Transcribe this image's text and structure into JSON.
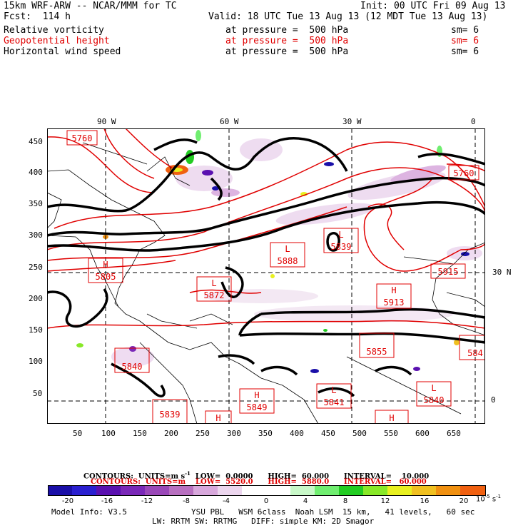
{
  "header": {
    "model_line": "15km WRF-ARW -- NCAR/MMM for TC",
    "init_line": "Init: 00 UTC Fri 09 Aug 13",
    "fcst_line": "Fcst:  114 h",
    "valid_line": "Valid: 18 UTC Tue 13 Aug 13 (12 MDT Tue 13 Aug 13)",
    "fields": [
      {
        "name": "Relative vorticity",
        "level": "at pressure =  500 hPa",
        "sm": "sm= 6",
        "color": "#000000"
      },
      {
        "name": "Geopotential height",
        "level": "at pressure =  500 hPa",
        "sm": "sm= 6",
        "color": "#e00000"
      },
      {
        "name": "Horizontal wind speed",
        "level": "at pressure =  500 hPa",
        "sm": "sm= 6",
        "color": "#000000"
      }
    ]
  },
  "map": {
    "lon_labels": [
      "90 W",
      "60 W",
      "30 W",
      "0"
    ],
    "lat_labels": [
      "30 N",
      "0"
    ],
    "y_ticks": [
      "450",
      "400",
      "350",
      "300",
      "250",
      "200",
      "150",
      "100",
      "50"
    ],
    "x_ticks": [
      "50",
      "100",
      "150",
      "200",
      "250",
      "300",
      "350",
      "400",
      "450",
      "500",
      "550",
      "600",
      "650"
    ],
    "height_labels": [
      {
        "kind": "",
        "value": "5760"
      },
      {
        "kind": "",
        "value": "5760"
      },
      {
        "kind": "L",
        "value": "5839"
      },
      {
        "kind": "L",
        "value": "5888"
      },
      {
        "kind": "H",
        "value": "5805"
      },
      {
        "kind": "L",
        "value": "5872"
      },
      {
        "kind": "H",
        "value": "5913"
      },
      {
        "kind": "",
        "value": "5915"
      },
      {
        "kind": "",
        "value": "5855"
      },
      {
        "kind": "",
        "value": "584"
      },
      {
        "kind": "",
        "value": "5840"
      },
      {
        "kind": "H",
        "value": "5849"
      },
      {
        "kind": "L",
        "value": "5841"
      },
      {
        "kind": "L",
        "value": "5840"
      },
      {
        "kind": "",
        "value": "5839"
      },
      {
        "kind": "H",
        "value": ""
      },
      {
        "kind": "H",
        "value": ""
      }
    ]
  },
  "footer": {
    "contours_black": "CONTOURS:  UNITS=m s",
    "contours_black_rest": "  LOW=  0.0000      HIGH=  60.000      INTERVAL=    10.000",
    "contours_red": "CONTOURS:  UNITS=m    LOW=  5520.0      HIGH=  5880.0      INTERVAL=   60.000",
    "colorbar_labels": [
      "-20",
      "-16",
      "-12",
      "-8",
      "-4",
      "0",
      "4",
      "8",
      "12",
      "16",
      "20"
    ],
    "colorbar_unit": "10",
    "model_info": "Model Info: V3.5",
    "physics_line1": "YSU PBL   WSM 6class  Noah LSM  15 km,   41 levels,   60 sec",
    "physics_line2": "LW: RRTM SW: RRTMG   DIFF: simple KM: 2D Smagor"
  },
  "colors": {
    "colorbar": [
      "#1a0fa8",
      "#2a1fd0",
      "#5a10b0",
      "#7a28b8",
      "#9a48b8",
      "#b870c0",
      "#d8a8dc",
      "#ecd6ee",
      "#ffffff",
      "#ffffff",
      "#c8f8c8",
      "#70ee70",
      "#22cc22",
      "#88e828",
      "#e8f020",
      "#f0c020",
      "#f09010",
      "#f06010"
    ]
  }
}
